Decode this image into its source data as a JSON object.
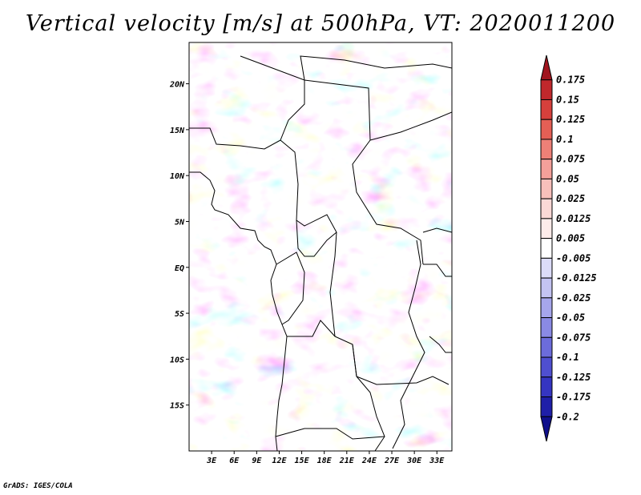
{
  "title": "Vertical velocity [m/s] at 500hPa, VT: 2020011200",
  "credit": "GrADS: IGES/COLA",
  "map": {
    "lat_labels": [
      "20N",
      "15N",
      "10N",
      "5N",
      "EQ",
      "5S",
      "10S",
      "15S"
    ],
    "lat_values": [
      20,
      15,
      10,
      5,
      0,
      -5,
      -10,
      -15
    ],
    "lon_labels": [
      "3E",
      "6E",
      "9E",
      "12E",
      "15E",
      "18E",
      "21E",
      "24E",
      "27E",
      "30E",
      "33E"
    ],
    "lon_values": [
      3,
      6,
      9,
      12,
      15,
      18,
      21,
      24,
      27,
      30,
      33
    ],
    "lon_range": [
      0,
      35
    ],
    "lat_range": [
      -20,
      24.5
    ]
  },
  "colorbar": {
    "labels": [
      "0.175",
      "0.15",
      "0.125",
      "0.1",
      "0.075",
      "0.05",
      "0.025",
      "0.0125",
      "0.005",
      "-0.005",
      "-0.0125",
      "-0.025",
      "-0.05",
      "-0.075",
      "-0.1",
      "-0.125",
      "-0.175",
      "-0.2"
    ],
    "colors": [
      "#a0141e",
      "#c0282c",
      "#d6403c",
      "#e55f55",
      "#ee8077",
      "#f4a09a",
      "#f8c0bb",
      "#fbd9d6",
      "#fdecea",
      "#ffffff",
      "#dcdcf8",
      "#c3c3f2",
      "#a6a6ec",
      "#8a8ae4",
      "#6c6cdb",
      "#4f4fd0",
      "#3535c2",
      "#1f1fa8",
      "#10108c"
    ]
  }
}
